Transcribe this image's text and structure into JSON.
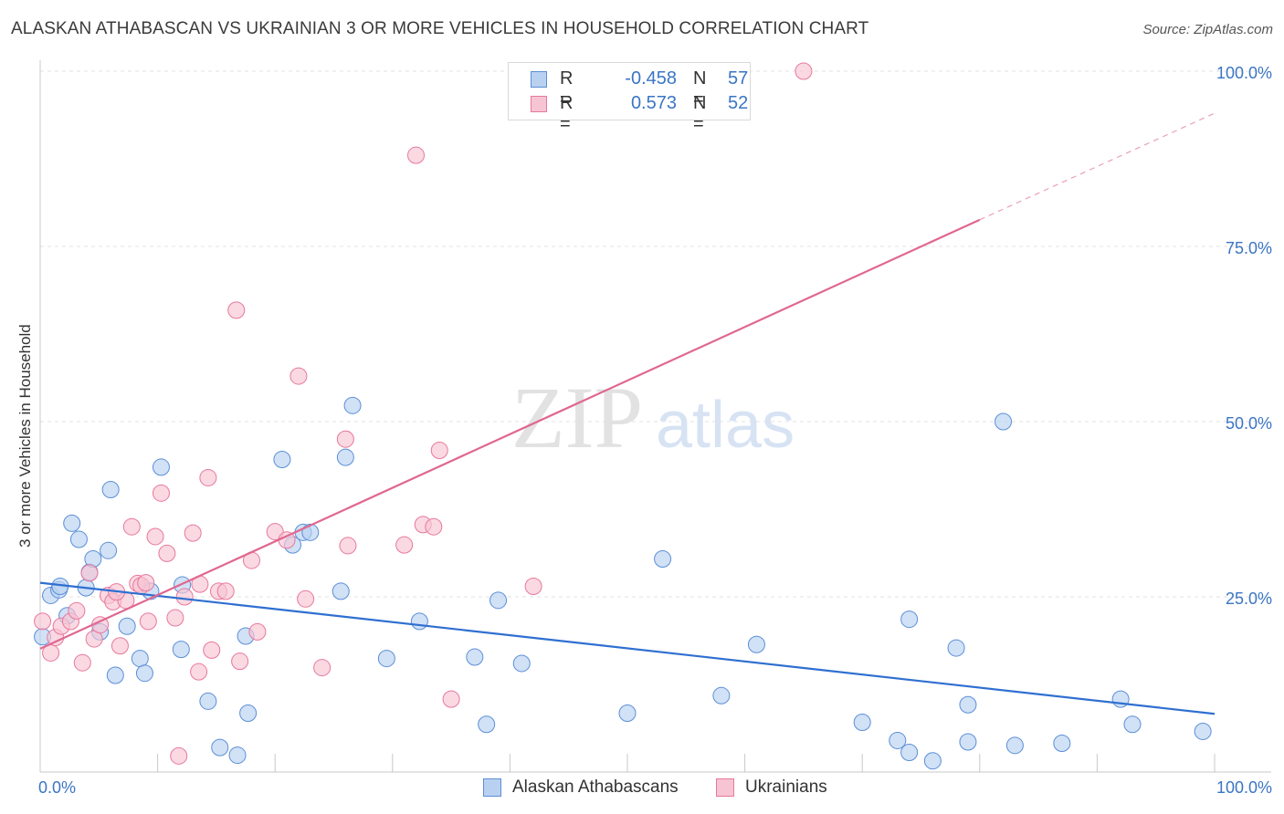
{
  "title": "ALASKAN ATHABASCAN VS UKRAINIAN 3 OR MORE VEHICLES IN HOUSEHOLD CORRELATION CHART",
  "source": "Source: ZipAtlas.com",
  "watermark": {
    "zip": "ZIP",
    "atlas": "atlas"
  },
  "legend": {
    "rows": [
      {
        "r_label": "R =",
        "r_value": "-0.458",
        "n_label": "N =",
        "n_value": "57"
      },
      {
        "r_label": "R =",
        "r_value": "0.573",
        "n_label": "N =",
        "n_value": "52"
      }
    ]
  },
  "bottom_legend": [
    "Alaskan Athabascans",
    "Ukrainians"
  ],
  "chart_data": {
    "type": "scatter",
    "title": "ALASKAN ATHABASCAN VS UKRAINIAN 3 OR MORE VEHICLES IN HOUSEHOLD CORRELATION CHART",
    "xlabel": "",
    "ylabel": "3 or more Vehicles in Household",
    "xlim": [
      0,
      100
    ],
    "ylim": [
      0,
      100
    ],
    "x_tick_labels": [
      "0.0%",
      "100.0%"
    ],
    "y_ticks": [
      25,
      50,
      75,
      100
    ],
    "y_tick_labels": [
      "25.0%",
      "50.0%",
      "75.0%",
      "100.0%"
    ],
    "grid": true,
    "legend_position": "top-center",
    "series": [
      {
        "name": "Alaskan Athabascans",
        "color": "#5b8fd6",
        "fill": "#b9d1f1",
        "r": -0.458,
        "n": 57,
        "trend": {
          "x": [
            0,
            100
          ],
          "y": [
            27.0,
            8.3
          ]
        },
        "points": [
          [
            0.2,
            19.3
          ],
          [
            0.9,
            25.2
          ],
          [
            1.6,
            26.0
          ],
          [
            1.7,
            26.5
          ],
          [
            2.3,
            22.3
          ],
          [
            2.7,
            35.5
          ],
          [
            3.3,
            33.2
          ],
          [
            3.9,
            26.3
          ],
          [
            4.2,
            28.5
          ],
          [
            4.5,
            30.4
          ],
          [
            5.1,
            20.0
          ],
          [
            5.8,
            31.6
          ],
          [
            6.0,
            40.3
          ],
          [
            6.4,
            13.8
          ],
          [
            7.4,
            20.8
          ],
          [
            8.5,
            16.2
          ],
          [
            8.9,
            14.1
          ],
          [
            9.4,
            25.8
          ],
          [
            10.3,
            43.5
          ],
          [
            12.0,
            17.5
          ],
          [
            12.1,
            26.7
          ],
          [
            14.3,
            10.1
          ],
          [
            15.3,
            3.5
          ],
          [
            16.8,
            2.4
          ],
          [
            17.5,
            19.4
          ],
          [
            17.7,
            8.4
          ],
          [
            20.6,
            44.6
          ],
          [
            21.5,
            32.4
          ],
          [
            22.4,
            34.2
          ],
          [
            23.0,
            34.2
          ],
          [
            25.6,
            25.8
          ],
          [
            26.0,
            44.9
          ],
          [
            26.6,
            52.3
          ],
          [
            29.5,
            16.2
          ],
          [
            32.3,
            21.5
          ],
          [
            37.0,
            16.4
          ],
          [
            38.0,
            6.8
          ],
          [
            39.0,
            24.5
          ],
          [
            41.0,
            15.5
          ],
          [
            50.0,
            8.4
          ],
          [
            53.0,
            30.4
          ],
          [
            58.0,
            10.9
          ],
          [
            61.0,
            18.2
          ],
          [
            70.0,
            7.1
          ],
          [
            73.0,
            4.5
          ],
          [
            74.0,
            2.8
          ],
          [
            74.0,
            21.8
          ],
          [
            76.0,
            1.6
          ],
          [
            78.0,
            17.7
          ],
          [
            79.0,
            9.6
          ],
          [
            79.0,
            4.3
          ],
          [
            82.0,
            50.0
          ],
          [
            83.0,
            3.8
          ],
          [
            87.0,
            4.1
          ],
          [
            92.0,
            10.4
          ],
          [
            93.0,
            6.8
          ],
          [
            99.0,
            5.8
          ]
        ]
      },
      {
        "name": "Ukrainians",
        "color": "#e8789c",
        "fill": "#f7c4d4",
        "r": 0.573,
        "n": 52,
        "trend": {
          "x": [
            0,
            80
          ],
          "y": [
            17.6,
            78.8
          ],
          "dashed_to": [
            100,
            94.0
          ]
        },
        "points": [
          [
            0.2,
            21.5
          ],
          [
            0.9,
            17.0
          ],
          [
            1.3,
            19.2
          ],
          [
            1.8,
            20.8
          ],
          [
            2.6,
            21.5
          ],
          [
            3.1,
            23.0
          ],
          [
            3.6,
            15.6
          ],
          [
            4.2,
            28.4
          ],
          [
            4.6,
            19.0
          ],
          [
            5.1,
            21.0
          ],
          [
            5.8,
            25.2
          ],
          [
            6.2,
            24.3
          ],
          [
            6.8,
            18.0
          ],
          [
            7.3,
            24.5
          ],
          [
            7.8,
            35.0
          ],
          [
            8.3,
            26.9
          ],
          [
            8.6,
            26.6
          ],
          [
            9.2,
            21.5
          ],
          [
            9.8,
            33.6
          ],
          [
            10.3,
            39.8
          ],
          [
            10.8,
            31.2
          ],
          [
            11.5,
            22.0
          ],
          [
            11.8,
            2.3
          ],
          [
            12.3,
            25.0
          ],
          [
            13.0,
            34.1
          ],
          [
            13.6,
            26.8
          ],
          [
            14.3,
            42.0
          ],
          [
            14.6,
            17.4
          ],
          [
            15.2,
            25.8
          ],
          [
            15.8,
            25.8
          ],
          [
            16.7,
            65.9
          ],
          [
            17.0,
            15.8
          ],
          [
            18.0,
            30.2
          ],
          [
            18.5,
            20.0
          ],
          [
            20.0,
            34.3
          ],
          [
            21.0,
            33.1
          ],
          [
            22.0,
            56.5
          ],
          [
            22.6,
            24.7
          ],
          [
            24.0,
            14.9
          ],
          [
            26.0,
            47.5
          ],
          [
            26.2,
            32.3
          ],
          [
            31.0,
            32.4
          ],
          [
            32.0,
            88.0
          ],
          [
            32.6,
            35.3
          ],
          [
            33.5,
            35.0
          ],
          [
            34.0,
            45.9
          ],
          [
            35.0,
            10.4
          ],
          [
            42.0,
            26.5
          ],
          [
            65.0,
            100.0
          ],
          [
            13.5,
            14.3
          ],
          [
            9.0,
            27.0
          ],
          [
            6.5,
            25.7
          ]
        ]
      }
    ]
  }
}
